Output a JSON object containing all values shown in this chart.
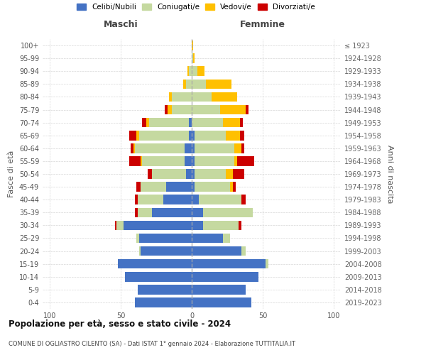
{
  "age_groups": [
    "0-4",
    "5-9",
    "10-14",
    "15-19",
    "20-24",
    "25-29",
    "30-34",
    "35-39",
    "40-44",
    "45-49",
    "50-54",
    "55-59",
    "60-64",
    "65-69",
    "70-74",
    "75-79",
    "80-84",
    "85-89",
    "90-94",
    "95-99",
    "100+"
  ],
  "birth_years": [
    "2019-2023",
    "2014-2018",
    "2009-2013",
    "2004-2008",
    "1999-2003",
    "1994-1998",
    "1989-1993",
    "1984-1988",
    "1979-1983",
    "1974-1978",
    "1969-1973",
    "1964-1968",
    "1959-1963",
    "1954-1958",
    "1949-1953",
    "1944-1948",
    "1939-1943",
    "1934-1938",
    "1929-1933",
    "1924-1928",
    "≤ 1923"
  ],
  "males": {
    "celibe": [
      40,
      38,
      47,
      52,
      36,
      37,
      48,
      28,
      20,
      18,
      4,
      5,
      5,
      2,
      2,
      0,
      0,
      0,
      0,
      0,
      0
    ],
    "coniugato": [
      0,
      0,
      0,
      0,
      1,
      2,
      5,
      10,
      18,
      18,
      24,
      30,
      35,
      35,
      28,
      14,
      14,
      4,
      2,
      0,
      0
    ],
    "vedovo": [
      0,
      0,
      0,
      0,
      0,
      0,
      0,
      0,
      0,
      0,
      0,
      1,
      1,
      2,
      2,
      3,
      2,
      2,
      1,
      0,
      0
    ],
    "divorziato": [
      0,
      0,
      0,
      0,
      0,
      0,
      1,
      2,
      2,
      3,
      3,
      8,
      2,
      5,
      3,
      2,
      0,
      0,
      0,
      0,
      0
    ]
  },
  "females": {
    "nubile": [
      42,
      38,
      47,
      52,
      35,
      22,
      8,
      8,
      5,
      2,
      2,
      2,
      2,
      2,
      0,
      0,
      0,
      0,
      0,
      0,
      0
    ],
    "coniugata": [
      0,
      0,
      0,
      2,
      3,
      5,
      25,
      35,
      30,
      25,
      22,
      28,
      28,
      22,
      22,
      20,
      14,
      10,
      4,
      1,
      0
    ],
    "vedova": [
      0,
      0,
      0,
      0,
      0,
      0,
      0,
      0,
      0,
      2,
      5,
      2,
      5,
      10,
      12,
      18,
      18,
      18,
      5,
      1,
      1
    ],
    "divorziata": [
      0,
      0,
      0,
      0,
      0,
      0,
      2,
      0,
      3,
      2,
      8,
      12,
      2,
      3,
      2,
      2,
      0,
      0,
      0,
      0,
      0
    ]
  },
  "colors": {
    "celibe": "#4472c4",
    "coniugato": "#c5d9a0",
    "vedovo": "#ffc000",
    "divorziato": "#cc0000"
  },
  "xlim": 105,
  "title": "Popolazione per età, sesso e stato civile - 2024",
  "subtitle": "COMUNE DI OGLIASTRO CILENTO (SA) - Dati ISTAT 1° gennaio 2024 - Elaborazione TUTTITALIA.IT",
  "xlabel_left": "Maschi",
  "xlabel_right": "Femmine",
  "ylabel": "Fasce di età",
  "ylabel_right": "Anni di nascita",
  "bg_color": "#ffffff",
  "grid_color": "#cccccc",
  "bar_height": 0.75
}
